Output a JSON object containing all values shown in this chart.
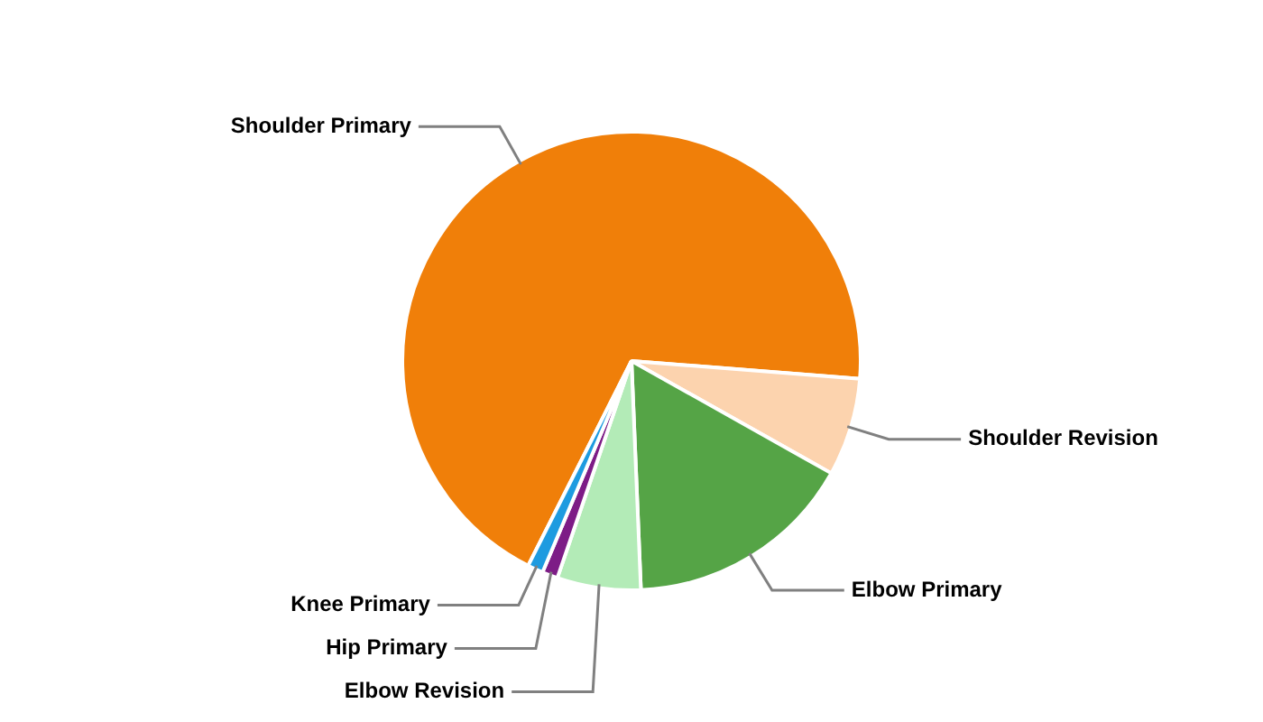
{
  "chart_data": {
    "type": "pie",
    "categories": [
      "Shoulder Primary",
      "Shoulder Revision",
      "Elbow Primary",
      "Elbow Revision",
      "Hip Primary",
      "Knee Primary"
    ],
    "values": [
      68.8,
      6.9,
      16.2,
      5.9,
      1.1,
      1.1
    ],
    "colors": [
      "#f07f09",
      "#fcd3ae",
      "#55a446",
      "#b3ebb7",
      "#7d1c86",
      "#1e9be0"
    ],
    "legend": false
  }
}
